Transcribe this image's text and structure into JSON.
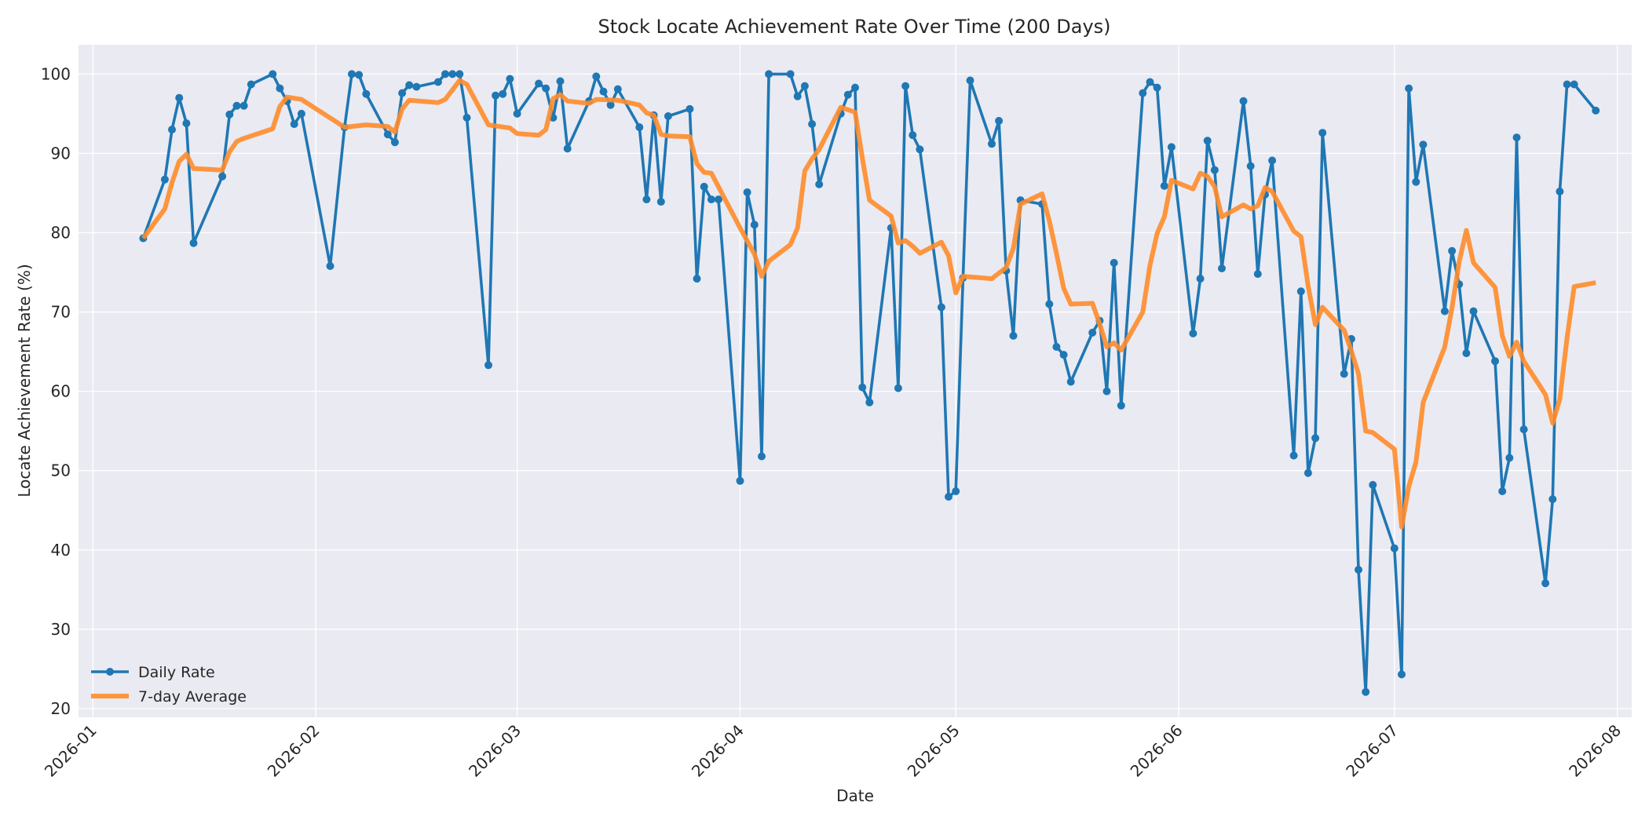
{
  "chart_data": {
    "type": "line",
    "title": "Stock Locate Achievement Rate Over Time (200 Days)",
    "xlabel": "Date",
    "ylabel": "Locate Achievement Rate (%)",
    "x_range": [
      "2025-12-30",
      "2026-08-03"
    ],
    "ylim": [
      18.9,
      103.7
    ],
    "yticks": [
      20,
      30,
      40,
      50,
      60,
      70,
      80,
      90,
      100
    ],
    "xticks": [
      {
        "date": "2026-01-01",
        "label": "2026-01"
      },
      {
        "date": "2026-02-01",
        "label": "2026-02"
      },
      {
        "date": "2026-03-01",
        "label": "2026-03"
      },
      {
        "date": "2026-04-01",
        "label": "2026-04"
      },
      {
        "date": "2026-05-01",
        "label": "2026-05"
      },
      {
        "date": "2026-06-01",
        "label": "2026-06"
      },
      {
        "date": "2026-07-01",
        "label": "2026-07"
      },
      {
        "date": "2026-08-01",
        "label": "2026-08"
      }
    ],
    "grid": true,
    "legend": "lower-left",
    "colors": {
      "daily": "#1f77b4",
      "avg": "#ff8c2a",
      "background": "#eaeaf2",
      "grid": "#ffffff"
    },
    "series": [
      {
        "name": "Daily Rate",
        "style": "line-with-markers",
        "points": [
          [
            "2026-01-08",
            79.3
          ],
          [
            "2026-01-11",
            86.7
          ],
          [
            "2026-01-12",
            93.0
          ],
          [
            "2026-01-13",
            97.0
          ],
          [
            "2026-01-14",
            93.8
          ],
          [
            "2026-01-15",
            78.7
          ],
          [
            "2026-01-19",
            87.1
          ],
          [
            "2026-01-20",
            94.9
          ],
          [
            "2026-01-21",
            96.0
          ],
          [
            "2026-01-22",
            96.0
          ],
          [
            "2026-01-23",
            98.7
          ],
          [
            "2026-01-26",
            100.0
          ],
          [
            "2026-01-27",
            98.2
          ],
          [
            "2026-01-28",
            96.6
          ],
          [
            "2026-01-29",
            93.7
          ],
          [
            "2026-01-30",
            95.0
          ],
          [
            "2026-02-03",
            75.8
          ],
          [
            "2026-02-05",
            93.3
          ],
          [
            "2026-02-06",
            100.0
          ],
          [
            "2026-02-07",
            99.9
          ],
          [
            "2026-02-08",
            97.5
          ],
          [
            "2026-02-11",
            92.4
          ],
          [
            "2026-02-12",
            91.4
          ],
          [
            "2026-02-13",
            97.6
          ],
          [
            "2026-02-14",
            98.6
          ],
          [
            "2026-02-15",
            98.4
          ],
          [
            "2026-02-18",
            99.0
          ],
          [
            "2026-02-19",
            100.0
          ],
          [
            "2026-02-20",
            100.0
          ],
          [
            "2026-02-21",
            100.0
          ],
          [
            "2026-02-22",
            94.5
          ],
          [
            "2026-02-25",
            63.3
          ],
          [
            "2026-02-26",
            97.3
          ],
          [
            "2026-02-27",
            97.5
          ],
          [
            "2026-02-28",
            99.4
          ],
          [
            "2026-03-01",
            95.0
          ],
          [
            "2026-03-04",
            98.8
          ],
          [
            "2026-03-05",
            98.2
          ],
          [
            "2026-03-06",
            94.5
          ],
          [
            "2026-03-07",
            99.1
          ],
          [
            "2026-03-08",
            90.6
          ],
          [
            "2026-03-11",
            96.6
          ],
          [
            "2026-03-12",
            99.7
          ],
          [
            "2026-03-13",
            97.8
          ],
          [
            "2026-03-14",
            96.1
          ],
          [
            "2026-03-15",
            98.1
          ],
          [
            "2026-03-18",
            93.3
          ],
          [
            "2026-03-19",
            84.2
          ],
          [
            "2026-03-20",
            94.8
          ],
          [
            "2026-03-21",
            83.9
          ],
          [
            "2026-03-22",
            94.7
          ],
          [
            "2026-03-25",
            95.6
          ],
          [
            "2026-03-26",
            74.2
          ],
          [
            "2026-03-27",
            85.8
          ],
          [
            "2026-03-28",
            84.2
          ],
          [
            "2026-03-29",
            84.2
          ],
          [
            "2026-04-01",
            48.7
          ],
          [
            "2026-04-02",
            85.1
          ],
          [
            "2026-04-03",
            81.0
          ],
          [
            "2026-04-04",
            51.8
          ],
          [
            "2026-04-05",
            100.0
          ],
          [
            "2026-04-08",
            100.0
          ],
          [
            "2026-04-09",
            97.2
          ],
          [
            "2026-04-10",
            98.5
          ],
          [
            "2026-04-11",
            93.7
          ],
          [
            "2026-04-12",
            86.1
          ],
          [
            "2026-04-15",
            95.0
          ],
          [
            "2026-04-16",
            97.4
          ],
          [
            "2026-04-17",
            98.3
          ],
          [
            "2026-04-18",
            60.5
          ],
          [
            "2026-04-19",
            58.6
          ],
          [
            "2026-04-22",
            80.6
          ],
          [
            "2026-04-23",
            60.4
          ],
          [
            "2026-04-24",
            98.5
          ],
          [
            "2026-04-25",
            92.3
          ],
          [
            "2026-04-26",
            90.5
          ],
          [
            "2026-04-29",
            70.6
          ],
          [
            "2026-04-30",
            46.7
          ],
          [
            "2026-05-01",
            47.4
          ],
          [
            "2026-05-02",
            74.3
          ],
          [
            "2026-05-03",
            99.2
          ],
          [
            "2026-05-06",
            91.2
          ],
          [
            "2026-05-07",
            94.1
          ],
          [
            "2026-05-08",
            75.2
          ],
          [
            "2026-05-09",
            67.0
          ],
          [
            "2026-05-10",
            84.1
          ],
          [
            "2026-05-13",
            83.6
          ],
          [
            "2026-05-14",
            71.0
          ],
          [
            "2026-05-15",
            65.6
          ],
          [
            "2026-05-16",
            64.6
          ],
          [
            "2026-05-17",
            61.2
          ],
          [
            "2026-05-20",
            67.4
          ],
          [
            "2026-05-21",
            68.9
          ],
          [
            "2026-05-22",
            60.0
          ],
          [
            "2026-05-23",
            76.2
          ],
          [
            "2026-05-24",
            58.2
          ],
          [
            "2026-05-27",
            97.6
          ],
          [
            "2026-05-28",
            99.0
          ],
          [
            "2026-05-29",
            98.3
          ],
          [
            "2026-05-30",
            85.9
          ],
          [
            "2026-05-31",
            90.8
          ],
          [
            "2026-06-03",
            67.3
          ],
          [
            "2026-06-04",
            74.2
          ],
          [
            "2026-06-05",
            91.6
          ],
          [
            "2026-06-06",
            87.9
          ],
          [
            "2026-06-07",
            75.5
          ],
          [
            "2026-06-10",
            96.6
          ],
          [
            "2026-06-11",
            88.4
          ],
          [
            "2026-06-12",
            74.8
          ],
          [
            "2026-06-13",
            84.8
          ],
          [
            "2026-06-14",
            89.1
          ],
          [
            "2026-06-17",
            51.9
          ],
          [
            "2026-06-18",
            72.6
          ],
          [
            "2026-06-19",
            49.7
          ],
          [
            "2026-06-20",
            54.1
          ],
          [
            "2026-06-21",
            92.6
          ],
          [
            "2026-06-24",
            62.2
          ],
          [
            "2026-06-25",
            66.6
          ],
          [
            "2026-06-26",
            37.5
          ],
          [
            "2026-06-27",
            22.1
          ],
          [
            "2026-06-28",
            48.2
          ],
          [
            "2026-07-01",
            40.2
          ],
          [
            "2026-07-02",
            24.3
          ],
          [
            "2026-07-03",
            98.2
          ],
          [
            "2026-07-04",
            86.4
          ],
          [
            "2026-07-05",
            91.1
          ],
          [
            "2026-07-08",
            70.1
          ],
          [
            "2026-07-09",
            77.7
          ],
          [
            "2026-07-10",
            73.5
          ],
          [
            "2026-07-11",
            64.8
          ],
          [
            "2026-07-12",
            70.1
          ],
          [
            "2026-07-15",
            63.8
          ],
          [
            "2026-07-16",
            47.4
          ],
          [
            "2026-07-17",
            51.6
          ],
          [
            "2026-07-18",
            92.0
          ],
          [
            "2026-07-19",
            55.2
          ],
          [
            "2026-07-22",
            35.8
          ],
          [
            "2026-07-23",
            46.4
          ],
          [
            "2026-07-24",
            85.2
          ],
          [
            "2026-07-25",
            98.7
          ],
          [
            "2026-07-26",
            98.7
          ],
          [
            "2026-07-29",
            95.4
          ]
        ]
      },
      {
        "name": "7-day Average",
        "style": "line",
        "points": [
          [
            "2026-01-08",
            79.3
          ],
          [
            "2026-01-11",
            83.0
          ],
          [
            "2026-01-12",
            86.3
          ],
          [
            "2026-01-13",
            89.0
          ],
          [
            "2026-01-14",
            89.9
          ],
          [
            "2026-01-15",
            88.1
          ],
          [
            "2026-01-19",
            87.9
          ],
          [
            "2026-01-20",
            90.2
          ],
          [
            "2026-01-21",
            91.5
          ],
          [
            "2026-01-22",
            91.9
          ],
          [
            "2026-01-26",
            93.1
          ],
          [
            "2026-01-27",
            95.9
          ],
          [
            "2026-01-28",
            97.1
          ],
          [
            "2026-01-30",
            96.8
          ],
          [
            "2026-02-05",
            93.3
          ],
          [
            "2026-02-08",
            93.6
          ],
          [
            "2026-02-11",
            93.4
          ],
          [
            "2026-02-12",
            92.7
          ],
          [
            "2026-02-13",
            95.6
          ],
          [
            "2026-02-14",
            96.7
          ],
          [
            "2026-02-18",
            96.4
          ],
          [
            "2026-02-19",
            96.8
          ],
          [
            "2026-02-20",
            98.0
          ],
          [
            "2026-02-21",
            99.2
          ],
          [
            "2026-02-22",
            98.7
          ],
          [
            "2026-02-25",
            93.6
          ],
          [
            "2026-02-28",
            93.2
          ],
          [
            "2026-03-01",
            92.5
          ],
          [
            "2026-03-04",
            92.3
          ],
          [
            "2026-03-05",
            93.0
          ],
          [
            "2026-03-06",
            96.9
          ],
          [
            "2026-03-07",
            97.4
          ],
          [
            "2026-03-08",
            96.6
          ],
          [
            "2026-03-11",
            96.3
          ],
          [
            "2026-03-12",
            96.8
          ],
          [
            "2026-03-15",
            96.7
          ],
          [
            "2026-03-18",
            96.1
          ],
          [
            "2026-03-19",
            95.1
          ],
          [
            "2026-03-20",
            94.8
          ],
          [
            "2026-03-21",
            92.4
          ],
          [
            "2026-03-22",
            92.2
          ],
          [
            "2026-03-25",
            92.1
          ],
          [
            "2026-03-26",
            88.7
          ],
          [
            "2026-03-27",
            87.6
          ],
          [
            "2026-03-28",
            87.5
          ],
          [
            "2026-04-01",
            80.6
          ],
          [
            "2026-04-03",
            77.3
          ],
          [
            "2026-04-04",
            74.5
          ],
          [
            "2026-04-05",
            76.4
          ],
          [
            "2026-04-08",
            78.5
          ],
          [
            "2026-04-09",
            80.6
          ],
          [
            "2026-04-10",
            87.8
          ],
          [
            "2026-04-11",
            89.3
          ],
          [
            "2026-04-12",
            90.5
          ],
          [
            "2026-04-15",
            95.8
          ],
          [
            "2026-04-17",
            95.2
          ],
          [
            "2026-04-18",
            89.4
          ],
          [
            "2026-04-19",
            84.1
          ],
          [
            "2026-04-22",
            82.1
          ],
          [
            "2026-04-23",
            78.7
          ],
          [
            "2026-04-24",
            79.0
          ],
          [
            "2026-04-25",
            78.3
          ],
          [
            "2026-04-26",
            77.4
          ],
          [
            "2026-04-29",
            78.8
          ],
          [
            "2026-04-30",
            77.1
          ],
          [
            "2026-05-01",
            72.4
          ],
          [
            "2026-05-02",
            74.5
          ],
          [
            "2026-05-06",
            74.2
          ],
          [
            "2026-05-07",
            74.9
          ],
          [
            "2026-05-08",
            75.6
          ],
          [
            "2026-05-09",
            78.0
          ],
          [
            "2026-05-10",
            83.6
          ],
          [
            "2026-05-13",
            84.9
          ],
          [
            "2026-05-14",
            81.5
          ],
          [
            "2026-05-15",
            77.4
          ],
          [
            "2026-05-16",
            73.0
          ],
          [
            "2026-05-17",
            71.0
          ],
          [
            "2026-05-20",
            71.1
          ],
          [
            "2026-05-21",
            68.5
          ],
          [
            "2026-05-22",
            65.6
          ],
          [
            "2026-05-23",
            66.1
          ],
          [
            "2026-05-24",
            65.2
          ],
          [
            "2026-05-27",
            70.0
          ],
          [
            "2026-05-28",
            75.9
          ],
          [
            "2026-05-29",
            79.9
          ],
          [
            "2026-05-30",
            82.0
          ],
          [
            "2026-05-31",
            86.6
          ],
          [
            "2026-06-03",
            85.5
          ],
          [
            "2026-06-04",
            87.5
          ],
          [
            "2026-06-05",
            87.1
          ],
          [
            "2026-06-06",
            85.8
          ],
          [
            "2026-06-07",
            82.0
          ],
          [
            "2026-06-10",
            83.5
          ],
          [
            "2026-06-11",
            83.0
          ],
          [
            "2026-06-12",
            83.4
          ],
          [
            "2026-06-13",
            85.7
          ],
          [
            "2026-06-14",
            85.2
          ],
          [
            "2026-06-17",
            80.2
          ],
          [
            "2026-06-18",
            79.5
          ],
          [
            "2026-06-19",
            73.3
          ],
          [
            "2026-06-20",
            68.4
          ],
          [
            "2026-06-21",
            70.6
          ],
          [
            "2026-06-24",
            67.7
          ],
          [
            "2026-06-25",
            65.1
          ],
          [
            "2026-06-26",
            62.2
          ],
          [
            "2026-06-27",
            55.0
          ],
          [
            "2026-06-28",
            54.8
          ],
          [
            "2026-07-01",
            52.7
          ],
          [
            "2026-07-02",
            42.9
          ],
          [
            "2026-07-03",
            48.0
          ],
          [
            "2026-07-04",
            51.1
          ],
          [
            "2026-07-05",
            58.6
          ],
          [
            "2026-07-08",
            65.6
          ],
          [
            "2026-07-09",
            70.5
          ],
          [
            "2026-07-10",
            76.3
          ],
          [
            "2026-07-11",
            80.3
          ],
          [
            "2026-07-12",
            76.2
          ],
          [
            "2026-07-15",
            73.1
          ],
          [
            "2026-07-16",
            67.0
          ],
          [
            "2026-07-17",
            64.4
          ],
          [
            "2026-07-18",
            66.2
          ],
          [
            "2026-07-19",
            63.8
          ],
          [
            "2026-07-22",
            59.6
          ],
          [
            "2026-07-23",
            56.0
          ],
          [
            "2026-07-24",
            59.0
          ],
          [
            "2026-07-25",
            66.7
          ],
          [
            "2026-07-26",
            73.2
          ],
          [
            "2026-07-29",
            73.7
          ]
        ]
      }
    ]
  }
}
